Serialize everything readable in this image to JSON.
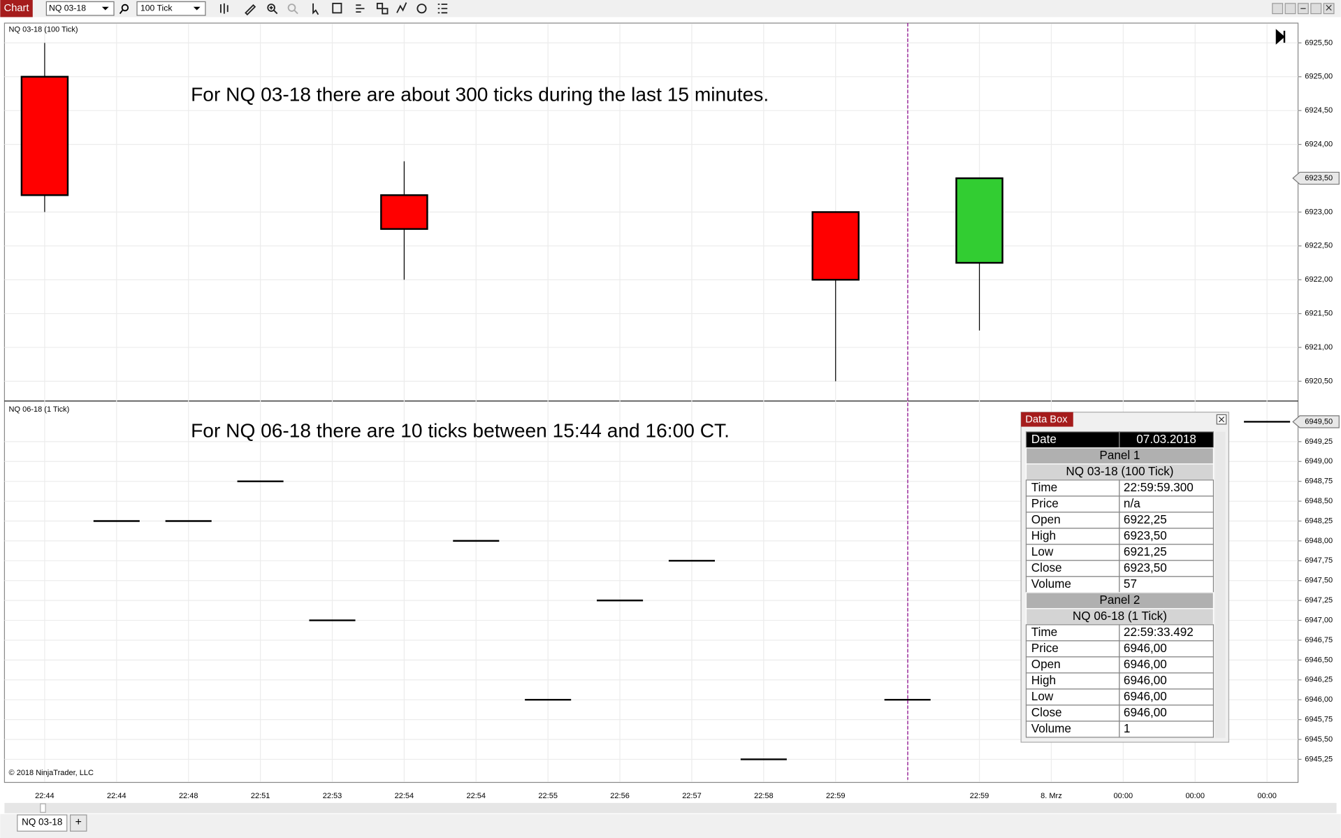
{
  "toolbar": {
    "title": "Chart",
    "instrument": "NQ 03-18",
    "interval": "100 Tick"
  },
  "x_axis": {
    "labels": [
      "22:44",
      "22:44",
      "22:48",
      "22:51",
      "22:53",
      "22:54",
      "22:54",
      "22:55",
      "22:56",
      "22:57",
      "22:58",
      "22:59",
      null,
      "22:59",
      "8. Mrz",
      "00:00",
      "00:00",
      "00:00"
    ]
  },
  "panels": [
    {
      "label": "NQ 03-18 (100 Tick)",
      "annotation": "For NQ 03-18 there are about 300 ticks during the last 15 minutes.",
      "ylim": [
        6920.22,
        6925.78
      ],
      "yticks": [
        {
          "value": 6920.5,
          "label": "6920,50"
        },
        {
          "value": 6921,
          "label": "6921,00"
        },
        {
          "value": 6921.5,
          "label": "6921,50"
        },
        {
          "value": 6922,
          "label": "6922,00"
        },
        {
          "value": 6922.5,
          "label": "6922,50"
        },
        {
          "value": 6923,
          "label": "6923,00"
        },
        {
          "value": 6924,
          "label": "6924,00"
        },
        {
          "value": 6924.5,
          "label": "6924,50"
        },
        {
          "value": 6925,
          "label": "6925,00"
        },
        {
          "value": 6925.5,
          "label": "6925,50"
        }
      ],
      "current_price": {
        "value": 6923.5,
        "label": "6923,50"
      },
      "up_color": "#32cd32",
      "down_color": "#ff0000",
      "open": [
        6925.0,
        null,
        null,
        null,
        null,
        6923.25,
        null,
        null,
        null,
        null,
        null,
        6923.0,
        null,
        6922.25,
        null,
        null,
        null,
        null
      ],
      "high": [
        6925.5,
        null,
        null,
        null,
        null,
        6923.75,
        null,
        null,
        null,
        null,
        null,
        6923.0,
        null,
        6923.5,
        null,
        null,
        null,
        null
      ],
      "low": [
        6923.0,
        null,
        null,
        null,
        null,
        6922.0,
        null,
        null,
        null,
        null,
        null,
        6920.5,
        null,
        6921.25,
        null,
        null,
        null,
        null
      ],
      "close": [
        6923.25,
        null,
        null,
        null,
        null,
        6922.75,
        null,
        null,
        null,
        null,
        null,
        6922.0,
        null,
        6923.5,
        null,
        null,
        null,
        null
      ]
    },
    {
      "label": "NQ 06-18 (1 Tick)",
      "annotation": "For NQ 06-18 there are 10 ticks between 15:44 and 16:00 CT.",
      "ylim": [
        6944.97,
        6949.75
      ],
      "yticks": [
        {
          "value": 6945.25,
          "label": "6945,25"
        },
        {
          "value": 6945.5,
          "label": "6945,50"
        },
        {
          "value": 6945.75,
          "label": "6945,75"
        },
        {
          "value": 6946,
          "label": "6946,00"
        },
        {
          "value": 6946.25,
          "label": "6946,25"
        },
        {
          "value": 6946.5,
          "label": "6946,50"
        },
        {
          "value": 6946.75,
          "label": "6946,75"
        },
        {
          "value": 6947,
          "label": "6947,00"
        },
        {
          "value": 6947.25,
          "label": "6947,25"
        },
        {
          "value": 6947.5,
          "label": "6947,50"
        },
        {
          "value": 6947.75,
          "label": "6947,75"
        },
        {
          "value": 6948,
          "label": "6948,00"
        },
        {
          "value": 6948.25,
          "label": "6948,25"
        },
        {
          "value": 6948.5,
          "label": "6948,50"
        },
        {
          "value": 6948.75,
          "label": "6948,75"
        },
        {
          "value": 6949,
          "label": "6949,00"
        },
        {
          "value": 6949.25,
          "label": "6949,25"
        }
      ],
      "current_price": {
        "value": 6949.5,
        "label": "6949,50"
      },
      "values": [
        null,
        6948.25,
        6948.25,
        6948.75,
        6947.0,
        null,
        6948.0,
        6946.0,
        6947.25,
        6947.75,
        6945.25,
        null,
        6946.0,
        null,
        null,
        null,
        null,
        6949.5
      ]
    }
  ],
  "copyright": "© 2018 NinjaTrader, LLC",
  "data_box": {
    "title": "Data Box",
    "rows": [
      [
        "Date",
        "07.03.2018"
      ],
      [
        "Panel 1"
      ],
      [
        "NQ 03-18 (100 Tick)"
      ],
      [
        "Time",
        "22:59:59.300"
      ],
      [
        "Price",
        "n/a"
      ],
      [
        "Open",
        "6922,25"
      ],
      [
        "High",
        "6923,50"
      ],
      [
        "Low",
        "6921,25"
      ],
      [
        "Close",
        "6923,50"
      ],
      [
        "Volume",
        "57"
      ],
      [
        "Panel 2"
      ],
      [
        "NQ 06-18 (1 Tick)"
      ],
      [
        "Time",
        "22:59:33.492"
      ],
      [
        "Price",
        "6946,00"
      ],
      [
        "Open",
        "6946,00"
      ],
      [
        "High",
        "6946,00"
      ],
      [
        "Low",
        "6946,00"
      ],
      [
        "Close",
        "6946,00"
      ],
      [
        "Volume",
        "1"
      ]
    ]
  },
  "tabs": [
    "NQ 03-18",
    "+"
  ]
}
